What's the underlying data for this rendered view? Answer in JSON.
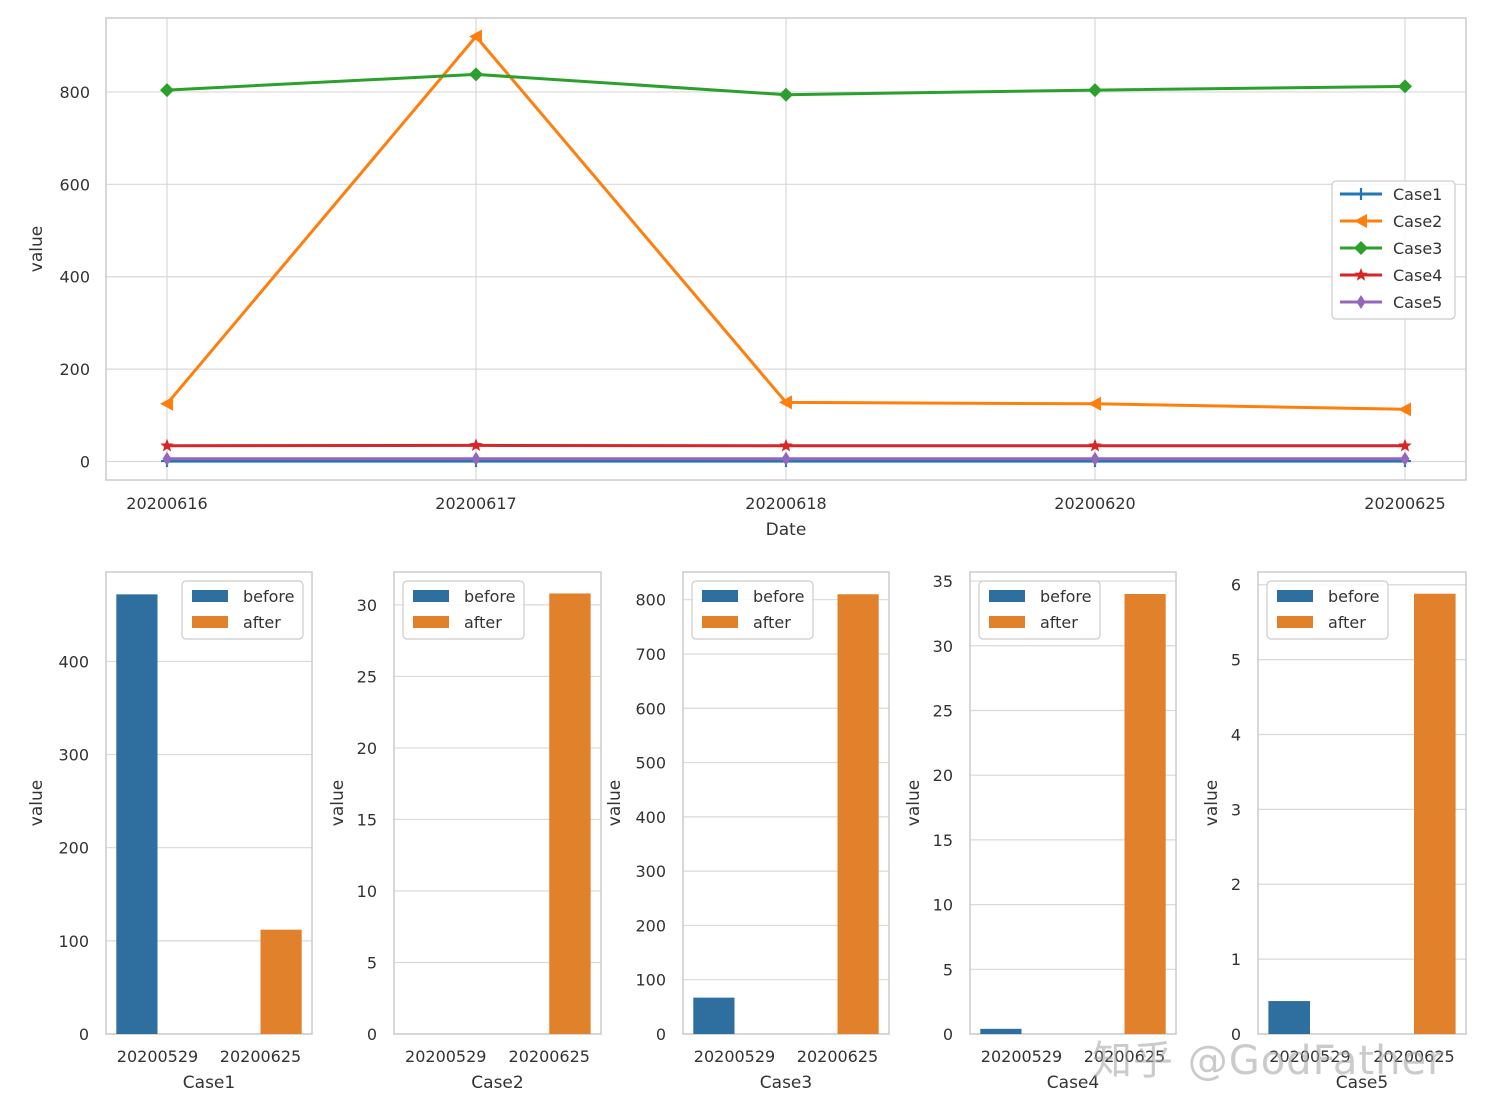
{
  "chart_data": [
    {
      "type": "line",
      "title": "",
      "xlabel": "Date",
      "ylabel": "value",
      "categories": [
        "20200616",
        "20200617",
        "20200618",
        "20200620",
        "20200625"
      ],
      "yticks": [
        0,
        200,
        400,
        600,
        800
      ],
      "ylim": [
        -40,
        960
      ],
      "grid": true,
      "legend_position": "center-right",
      "series": [
        {
          "name": "Case1",
          "color": "#1f77b4",
          "marker": "plus",
          "values": [
            1,
            1,
            1,
            1,
            1
          ]
        },
        {
          "name": "Case2",
          "color": "#ff7f0e",
          "marker": "triangle-left",
          "values": [
            125,
            920,
            128,
            125,
            113
          ]
        },
        {
          "name": "Case3",
          "color": "#2ca02c",
          "marker": "diamond",
          "values": [
            804,
            838,
            794,
            804,
            812
          ]
        },
        {
          "name": "Case4",
          "color": "#d62728",
          "marker": "star",
          "values": [
            34,
            35,
            34,
            34,
            34
          ]
        },
        {
          "name": "Case5",
          "color": "#9467bd",
          "marker": "thin-diamond",
          "values": [
            6,
            6,
            6,
            6,
            6
          ]
        }
      ]
    },
    {
      "type": "bar",
      "title": "",
      "xlabel": "Case1",
      "ylabel": "value",
      "categories": [
        "20200529",
        "20200625"
      ],
      "series": [
        {
          "name": "before",
          "color": "#2e6fa0",
          "values": [
            472,
            0
          ]
        },
        {
          "name": "after",
          "color": "#e1812c",
          "values": [
            0,
            112
          ]
        }
      ],
      "yticks": [
        0,
        100,
        200,
        300,
        400
      ],
      "ylim": [
        0,
        496
      ],
      "legend_position": "top-right"
    },
    {
      "type": "bar",
      "title": "",
      "xlabel": "Case2",
      "ylabel": "value",
      "categories": [
        "20200529",
        "20200625"
      ],
      "series": [
        {
          "name": "before",
          "color": "#2e6fa0",
          "values": [
            0,
            0
          ]
        },
        {
          "name": "after",
          "color": "#e1812c",
          "values": [
            0,
            30.8
          ]
        }
      ],
      "yticks": [
        0,
        5,
        10,
        15,
        20,
        25,
        30
      ],
      "ylim": [
        0,
        32.3
      ],
      "legend_position": "top-left"
    },
    {
      "type": "bar",
      "title": "",
      "xlabel": "Case3",
      "ylabel": "value",
      "categories": [
        "20200529",
        "20200625"
      ],
      "series": [
        {
          "name": "before",
          "color": "#2e6fa0",
          "values": [
            67,
            0
          ]
        },
        {
          "name": "after",
          "color": "#e1812c",
          "values": [
            0,
            810
          ]
        }
      ],
      "yticks": [
        0,
        100,
        200,
        300,
        400,
        500,
        600,
        700,
        800
      ],
      "ylim": [
        0,
        851
      ],
      "legend_position": "top-left"
    },
    {
      "type": "bar",
      "title": "",
      "xlabel": "Case4",
      "ylabel": "value",
      "categories": [
        "20200529",
        "20200625"
      ],
      "series": [
        {
          "name": "before",
          "color": "#2e6fa0",
          "values": [
            0.4,
            0
          ]
        },
        {
          "name": "after",
          "color": "#e1812c",
          "values": [
            0,
            34
          ]
        }
      ],
      "yticks": [
        0,
        5,
        10,
        15,
        20,
        25,
        30,
        35
      ],
      "ylim": [
        0,
        35.7
      ],
      "legend_position": "top-left"
    },
    {
      "type": "bar",
      "title": "",
      "xlabel": "Case5",
      "ylabel": "value",
      "categories": [
        "20200529",
        "20200625"
      ],
      "series": [
        {
          "name": "before",
          "color": "#2e6fa0",
          "values": [
            0.44,
            0
          ]
        },
        {
          "name": "after",
          "color": "#e1812c",
          "values": [
            0,
            5.88
          ]
        }
      ],
      "yticks": [
        0,
        1,
        2,
        3,
        4,
        5,
        6
      ],
      "ylim": [
        0,
        6.17
      ],
      "legend_position": "top-left"
    }
  ],
  "watermark": "知乎 @GodFather"
}
